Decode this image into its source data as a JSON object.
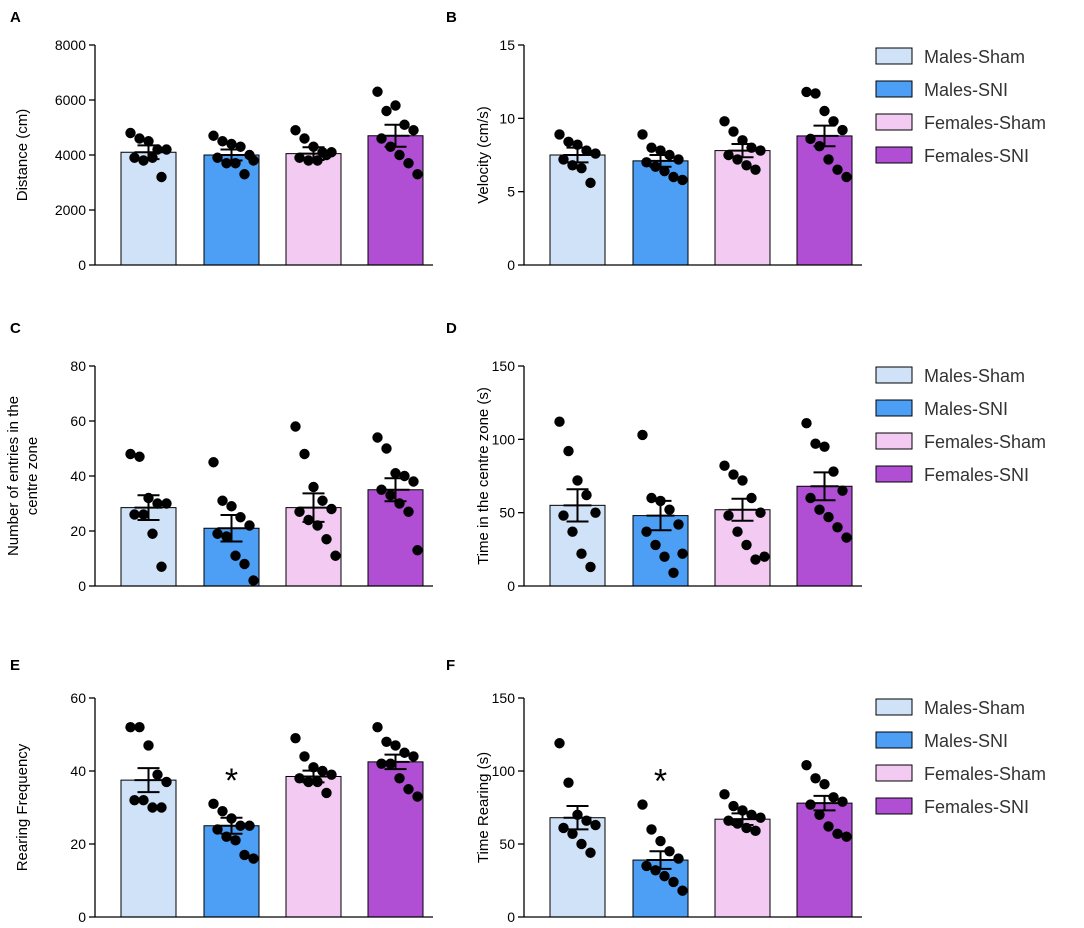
{
  "colors": {
    "males_sham": "#cfe2f7",
    "males_sni": "#4d9ff5",
    "females_sham": "#f2caf2",
    "females_sni": "#b04fd3"
  },
  "chart_data": [
    {
      "type": "bar",
      "panel": "A",
      "ylabel": "Distance (cm)",
      "ylim": [
        0,
        8000
      ],
      "yticks": [
        "0",
        "2000",
        "4000",
        "6000",
        "8000"
      ],
      "categories": [
        "Males-Sham",
        "Males-SNI",
        "Females-Sham",
        "Females-SNI"
      ],
      "values": [
        4100,
        4000,
        4050,
        4700
      ],
      "errors": [
        250,
        200,
        230,
        400
      ],
      "points": [
        [
          4800,
          4600,
          4500,
          4200,
          4200,
          3900,
          3800,
          3900,
          3200
        ],
        [
          4700,
          4500,
          4400,
          4300,
          4000,
          3900,
          3700,
          3700,
          3300,
          3800
        ],
        [
          4900,
          4600,
          4300,
          4100,
          4100,
          3900,
          3800,
          3800,
          4000
        ],
        [
          6300,
          5600,
          5800,
          5100,
          4900,
          4600,
          4300,
          4000,
          3700,
          3300
        ]
      ],
      "significance": [
        "",
        "",
        "",
        ""
      ]
    },
    {
      "type": "bar",
      "panel": "B",
      "ylabel": "Velocity (cm/s)",
      "ylim": [
        0,
        15
      ],
      "yticks": [
        "0",
        "5",
        "10",
        "15"
      ],
      "categories": [
        "Males-Sham",
        "Males-SNI",
        "Females-Sham",
        "Females-SNI"
      ],
      "values": [
        7.5,
        7.1,
        7.8,
        8.8
      ],
      "errors": [
        0.5,
        0.4,
        0.45,
        0.7
      ],
      "points": [
        [
          8.9,
          8.4,
          8.2,
          7.8,
          7.6,
          7.2,
          6.8,
          6.6,
          5.6
        ],
        [
          8.9,
          8.0,
          7.8,
          7.5,
          7.2,
          7.0,
          6.7,
          6.4,
          6.0,
          5.8
        ],
        [
          9.8,
          9.1,
          8.5,
          8.0,
          7.8,
          7.5,
          7.2,
          6.8,
          6.5
        ],
        [
          11.8,
          11.7,
          10.5,
          9.8,
          9.2,
          8.6,
          8.1,
          7.2,
          6.5,
          6.0
        ]
      ],
      "significance": [
        "",
        "",
        "",
        ""
      ]
    },
    {
      "type": "bar",
      "panel": "C",
      "ylabel": "Number of entries in the centre zone",
      "ylim": [
        0,
        80
      ],
      "yticks": [
        "0",
        "20",
        "40",
        "60",
        "80"
      ],
      "categories": [
        "Males-Sham",
        "Males-SNI",
        "Females-Sham",
        "Females-SNI"
      ],
      "values": [
        28.5,
        21,
        28.5,
        35
      ],
      "errors": [
        4.5,
        4.8,
        5.2,
        4.2
      ],
      "points": [
        [
          48,
          47,
          32,
          30,
          30,
          26,
          26,
          19,
          7
        ],
        [
          45,
          31,
          29,
          25,
          22,
          19,
          18,
          11,
          8,
          2
        ],
        [
          58,
          48,
          36,
          31,
          28,
          27,
          24,
          22,
          17,
          11
        ],
        [
          54,
          50,
          41,
          40,
          38,
          35,
          33,
          30,
          27,
          13
        ]
      ],
      "significance": [
        "",
        "",
        "",
        ""
      ]
    },
    {
      "type": "bar",
      "panel": "D",
      "ylabel": "Time in the centre zone (s)",
      "ylim": [
        0,
        150
      ],
      "yticks": [
        "0",
        "50",
        "100",
        "150"
      ],
      "categories": [
        "Males-Sham",
        "Males-SNI",
        "Females-Sham",
        "Females-SNI"
      ],
      "values": [
        55,
        48,
        52,
        68
      ],
      "errors": [
        11,
        10,
        7.5,
        9.5
      ],
      "points": [
        [
          112,
          92,
          72,
          62,
          50,
          48,
          37,
          22,
          13
        ],
        [
          103,
          60,
          58,
          52,
          42,
          37,
          28,
          20,
          9,
          22
        ],
        [
          82,
          76,
          72,
          60,
          50,
          48,
          37,
          28,
          18,
          20
        ],
        [
          111,
          97,
          95,
          78,
          65,
          60,
          52,
          47,
          40,
          33
        ]
      ],
      "significance": [
        "",
        "",
        "",
        ""
      ]
    },
    {
      "type": "bar",
      "panel": "E",
      "ylabel": "Rearing Frequency",
      "ylim": [
        0,
        60
      ],
      "yticks": [
        "0",
        "20",
        "40",
        "60"
      ],
      "categories": [
        "Males-Sham",
        "Males-SNI",
        "Females-Sham",
        "Females-SNI"
      ],
      "values": [
        37.5,
        25,
        38.5,
        42.5
      ],
      "errors": [
        3.3,
        2.2,
        1.6,
        2.0
      ],
      "points": [
        [
          52,
          52,
          47,
          39,
          37,
          32,
          32,
          30,
          30
        ],
        [
          31,
          29,
          27,
          25,
          25,
          24,
          22,
          21,
          17,
          16
        ],
        [
          49,
          44,
          41,
          40,
          39,
          38,
          37,
          37,
          34
        ],
        [
          52,
          48,
          47,
          45,
          44,
          42,
          42,
          38,
          35,
          33
        ]
      ],
      "significance": [
        "",
        "*",
        "",
        ""
      ]
    },
    {
      "type": "bar",
      "panel": "F",
      "ylabel": "Time Rearing (s)",
      "ylim": [
        0,
        150
      ],
      "yticks": [
        "0",
        "50",
        "100",
        "150"
      ],
      "categories": [
        "Males-Sham",
        "Males-SNI",
        "Females-Sham",
        "Females-SNI"
      ],
      "values": [
        68,
        39,
        67,
        78
      ],
      "errors": [
        8,
        6,
        4,
        5
      ],
      "points": [
        [
          119,
          92,
          70,
          66,
          63,
          61,
          57,
          50,
          44
        ],
        [
          77,
          60,
          52,
          45,
          40,
          35,
          32,
          28,
          24,
          18
        ],
        [
          84,
          76,
          73,
          70,
          68,
          66,
          64,
          61,
          59
        ],
        [
          104,
          95,
          91,
          82,
          79,
          77,
          70,
          62,
          57,
          55
        ]
      ],
      "significance": [
        "",
        "*",
        "",
        ""
      ]
    }
  ],
  "legends": [
    [
      "Males-Sham",
      "Males-SNI",
      "Females-Sham",
      "Females-SNI"
    ],
    [
      "Males-Sham",
      "Males-SNI",
      "Females-Sham",
      "Females-SNI"
    ],
    [
      "Males-Sham",
      "Males-SNI",
      "Females-Sham",
      "Females-SNI"
    ]
  ]
}
